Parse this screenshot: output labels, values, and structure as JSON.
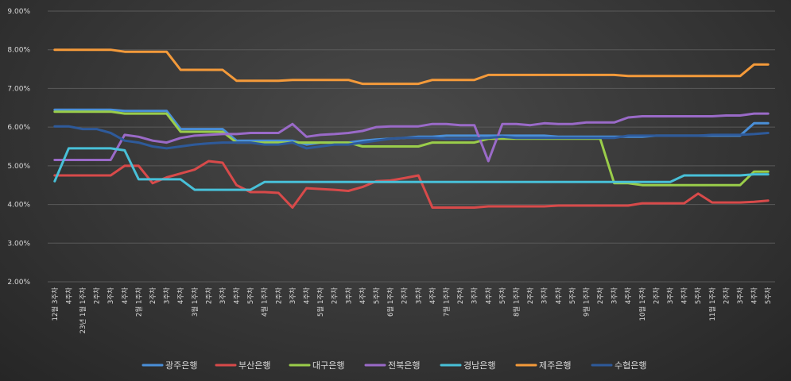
{
  "chart_data": {
    "type": "line",
    "title": "",
    "xlabel": "",
    "ylabel": "",
    "ylim": [
      2.0,
      9.0
    ],
    "yticks": [
      "2.00%",
      "3.00%",
      "4.00%",
      "5.00%",
      "6.00%",
      "7.00%",
      "8.00%",
      "9.00%"
    ],
    "legend_position": "bottom",
    "categories": [
      "12월 3주차",
      "4주차",
      "23년 1월 1주차",
      "2주차",
      "3주차",
      "4주차",
      "2월 1주차",
      "2주차",
      "3주차",
      "4주차",
      "3월 1주차",
      "2주차",
      "3주차",
      "4주차",
      "5주차",
      "4월 1주차",
      "2주차",
      "3주차",
      "4주차",
      "5월 1주차",
      "2주차",
      "3주차",
      "4주차",
      "5주차",
      "6월 1주차",
      "2주차",
      "3주차",
      "4주차",
      "7월 1주차",
      "2주차",
      "3주차",
      "4주차",
      "5주차",
      "8월 1주차",
      "2주차",
      "3주차",
      "4주차",
      "5주차",
      "9월 1주차",
      "2주차",
      "3주차",
      "4주차",
      "10월 1주차",
      "2주차",
      "3주차",
      "4주차",
      "5주차",
      "11월 1주차",
      "2주차",
      "3주차",
      "4주차",
      "5주차"
    ],
    "series": [
      {
        "name": "광주은행",
        "color": "#4a8fd8",
        "values": [
          6.45,
          6.45,
          6.45,
          6.45,
          6.45,
          6.42,
          6.42,
          6.42,
          6.42,
          5.95,
          5.95,
          5.95,
          5.95,
          5.65,
          5.65,
          5.65,
          5.65,
          5.65,
          5.55,
          5.6,
          5.6,
          5.6,
          5.65,
          5.68,
          5.7,
          5.72,
          5.75,
          5.75,
          5.78,
          5.78,
          5.78,
          5.78,
          5.78,
          5.78,
          5.78,
          5.78,
          5.75,
          5.75,
          5.75,
          5.75,
          5.75,
          5.75,
          5.75,
          5.78,
          5.78,
          5.78,
          5.78,
          5.78,
          5.78,
          5.78,
          6.1,
          6.1
        ]
      },
      {
        "name": "부산은행",
        "color": "#d84a4a",
        "values": [
          4.75,
          4.75,
          4.75,
          4.75,
          4.75,
          5.0,
          5.0,
          4.55,
          4.7,
          4.8,
          4.9,
          5.12,
          5.08,
          4.5,
          4.32,
          4.32,
          4.3,
          3.92,
          4.42,
          4.4,
          4.38,
          4.35,
          4.45,
          4.6,
          4.62,
          4.68,
          4.75,
          3.92,
          3.92,
          3.92,
          3.92,
          3.95,
          3.95,
          3.95,
          3.95,
          3.95,
          3.97,
          3.97,
          3.97,
          3.97,
          3.97,
          3.97,
          4.03,
          4.03,
          4.03,
          4.03,
          4.28,
          4.05,
          4.05,
          4.05,
          4.07,
          4.1
        ]
      },
      {
        "name": "대구은행",
        "color": "#9acd4a",
        "values": [
          6.4,
          6.4,
          6.4,
          6.4,
          6.4,
          6.35,
          6.35,
          6.35,
          6.35,
          5.88,
          5.88,
          5.88,
          5.88,
          5.6,
          5.6,
          5.6,
          5.6,
          5.6,
          5.6,
          5.6,
          5.6,
          5.6,
          5.5,
          5.5,
          5.5,
          5.5,
          5.5,
          5.6,
          5.6,
          5.6,
          5.6,
          5.7,
          5.7,
          5.7,
          5.7,
          5.7,
          5.7,
          5.7,
          5.7,
          5.7,
          4.55,
          4.55,
          4.5,
          4.5,
          4.5,
          4.5,
          4.5,
          4.5,
          4.5,
          4.5,
          4.85,
          4.85
        ]
      },
      {
        "name": "전북은행",
        "color": "#9a6ac8",
        "values": [
          5.15,
          5.15,
          5.15,
          5.15,
          5.15,
          5.8,
          5.75,
          5.65,
          5.6,
          5.72,
          5.78,
          5.8,
          5.82,
          5.82,
          5.85,
          5.85,
          5.85,
          6.08,
          5.75,
          5.8,
          5.82,
          5.85,
          5.9,
          6.0,
          6.02,
          6.02,
          6.02,
          6.08,
          6.08,
          6.05,
          6.05,
          5.12,
          6.08,
          6.08,
          6.05,
          6.1,
          6.08,
          6.08,
          6.12,
          6.12,
          6.12,
          6.25,
          6.28,
          6.28,
          6.28,
          6.28,
          6.28,
          6.28,
          6.3,
          6.3,
          6.35,
          6.35
        ]
      },
      {
        "name": "경남은행",
        "color": "#48c0d8",
        "values": [
          4.6,
          5.45,
          5.45,
          5.45,
          5.45,
          5.4,
          4.65,
          4.65,
          4.65,
          4.65,
          4.38,
          4.38,
          4.38,
          4.38,
          4.38,
          4.58,
          4.58,
          4.58,
          4.58,
          4.58,
          4.58,
          4.58,
          4.58,
          4.58,
          4.58,
          4.58,
          4.58,
          4.58,
          4.58,
          4.58,
          4.58,
          4.58,
          4.58,
          4.58,
          4.58,
          4.58,
          4.58,
          4.58,
          4.58,
          4.58,
          4.58,
          4.58,
          4.58,
          4.58,
          4.58,
          4.75,
          4.75,
          4.75,
          4.75,
          4.75,
          4.78,
          4.78
        ]
      },
      {
        "name": "제주은행",
        "color": "#f49a3a",
        "values": [
          8.0,
          8.0,
          8.0,
          8.0,
          8.0,
          7.95,
          7.95,
          7.95,
          7.95,
          7.48,
          7.48,
          7.48,
          7.48,
          7.2,
          7.2,
          7.2,
          7.2,
          7.22,
          7.22,
          7.22,
          7.22,
          7.22,
          7.12,
          7.12,
          7.12,
          7.12,
          7.12,
          7.22,
          7.22,
          7.22,
          7.22,
          7.35,
          7.35,
          7.35,
          7.35,
          7.35,
          7.35,
          7.35,
          7.35,
          7.35,
          7.35,
          7.32,
          7.32,
          7.32,
          7.32,
          7.32,
          7.32,
          7.32,
          7.32,
          7.32,
          7.62,
          7.62
        ]
      },
      {
        "name": "수협은행",
        "color": "#2e5a9a",
        "values": [
          6.02,
          6.02,
          5.95,
          5.95,
          5.85,
          5.65,
          5.6,
          5.5,
          5.45,
          5.5,
          5.55,
          5.58,
          5.6,
          5.6,
          5.6,
          5.55,
          5.55,
          5.6,
          5.45,
          5.5,
          5.55,
          5.55,
          5.6,
          5.65,
          5.7,
          5.72,
          5.72,
          5.72,
          5.7,
          5.7,
          5.7,
          5.72,
          5.75,
          5.72,
          5.72,
          5.72,
          5.72,
          5.72,
          5.72,
          5.72,
          5.72,
          5.78,
          5.78,
          5.78,
          5.78,
          5.78,
          5.78,
          5.8,
          5.8,
          5.8,
          5.82,
          5.85
        ]
      }
    ]
  }
}
